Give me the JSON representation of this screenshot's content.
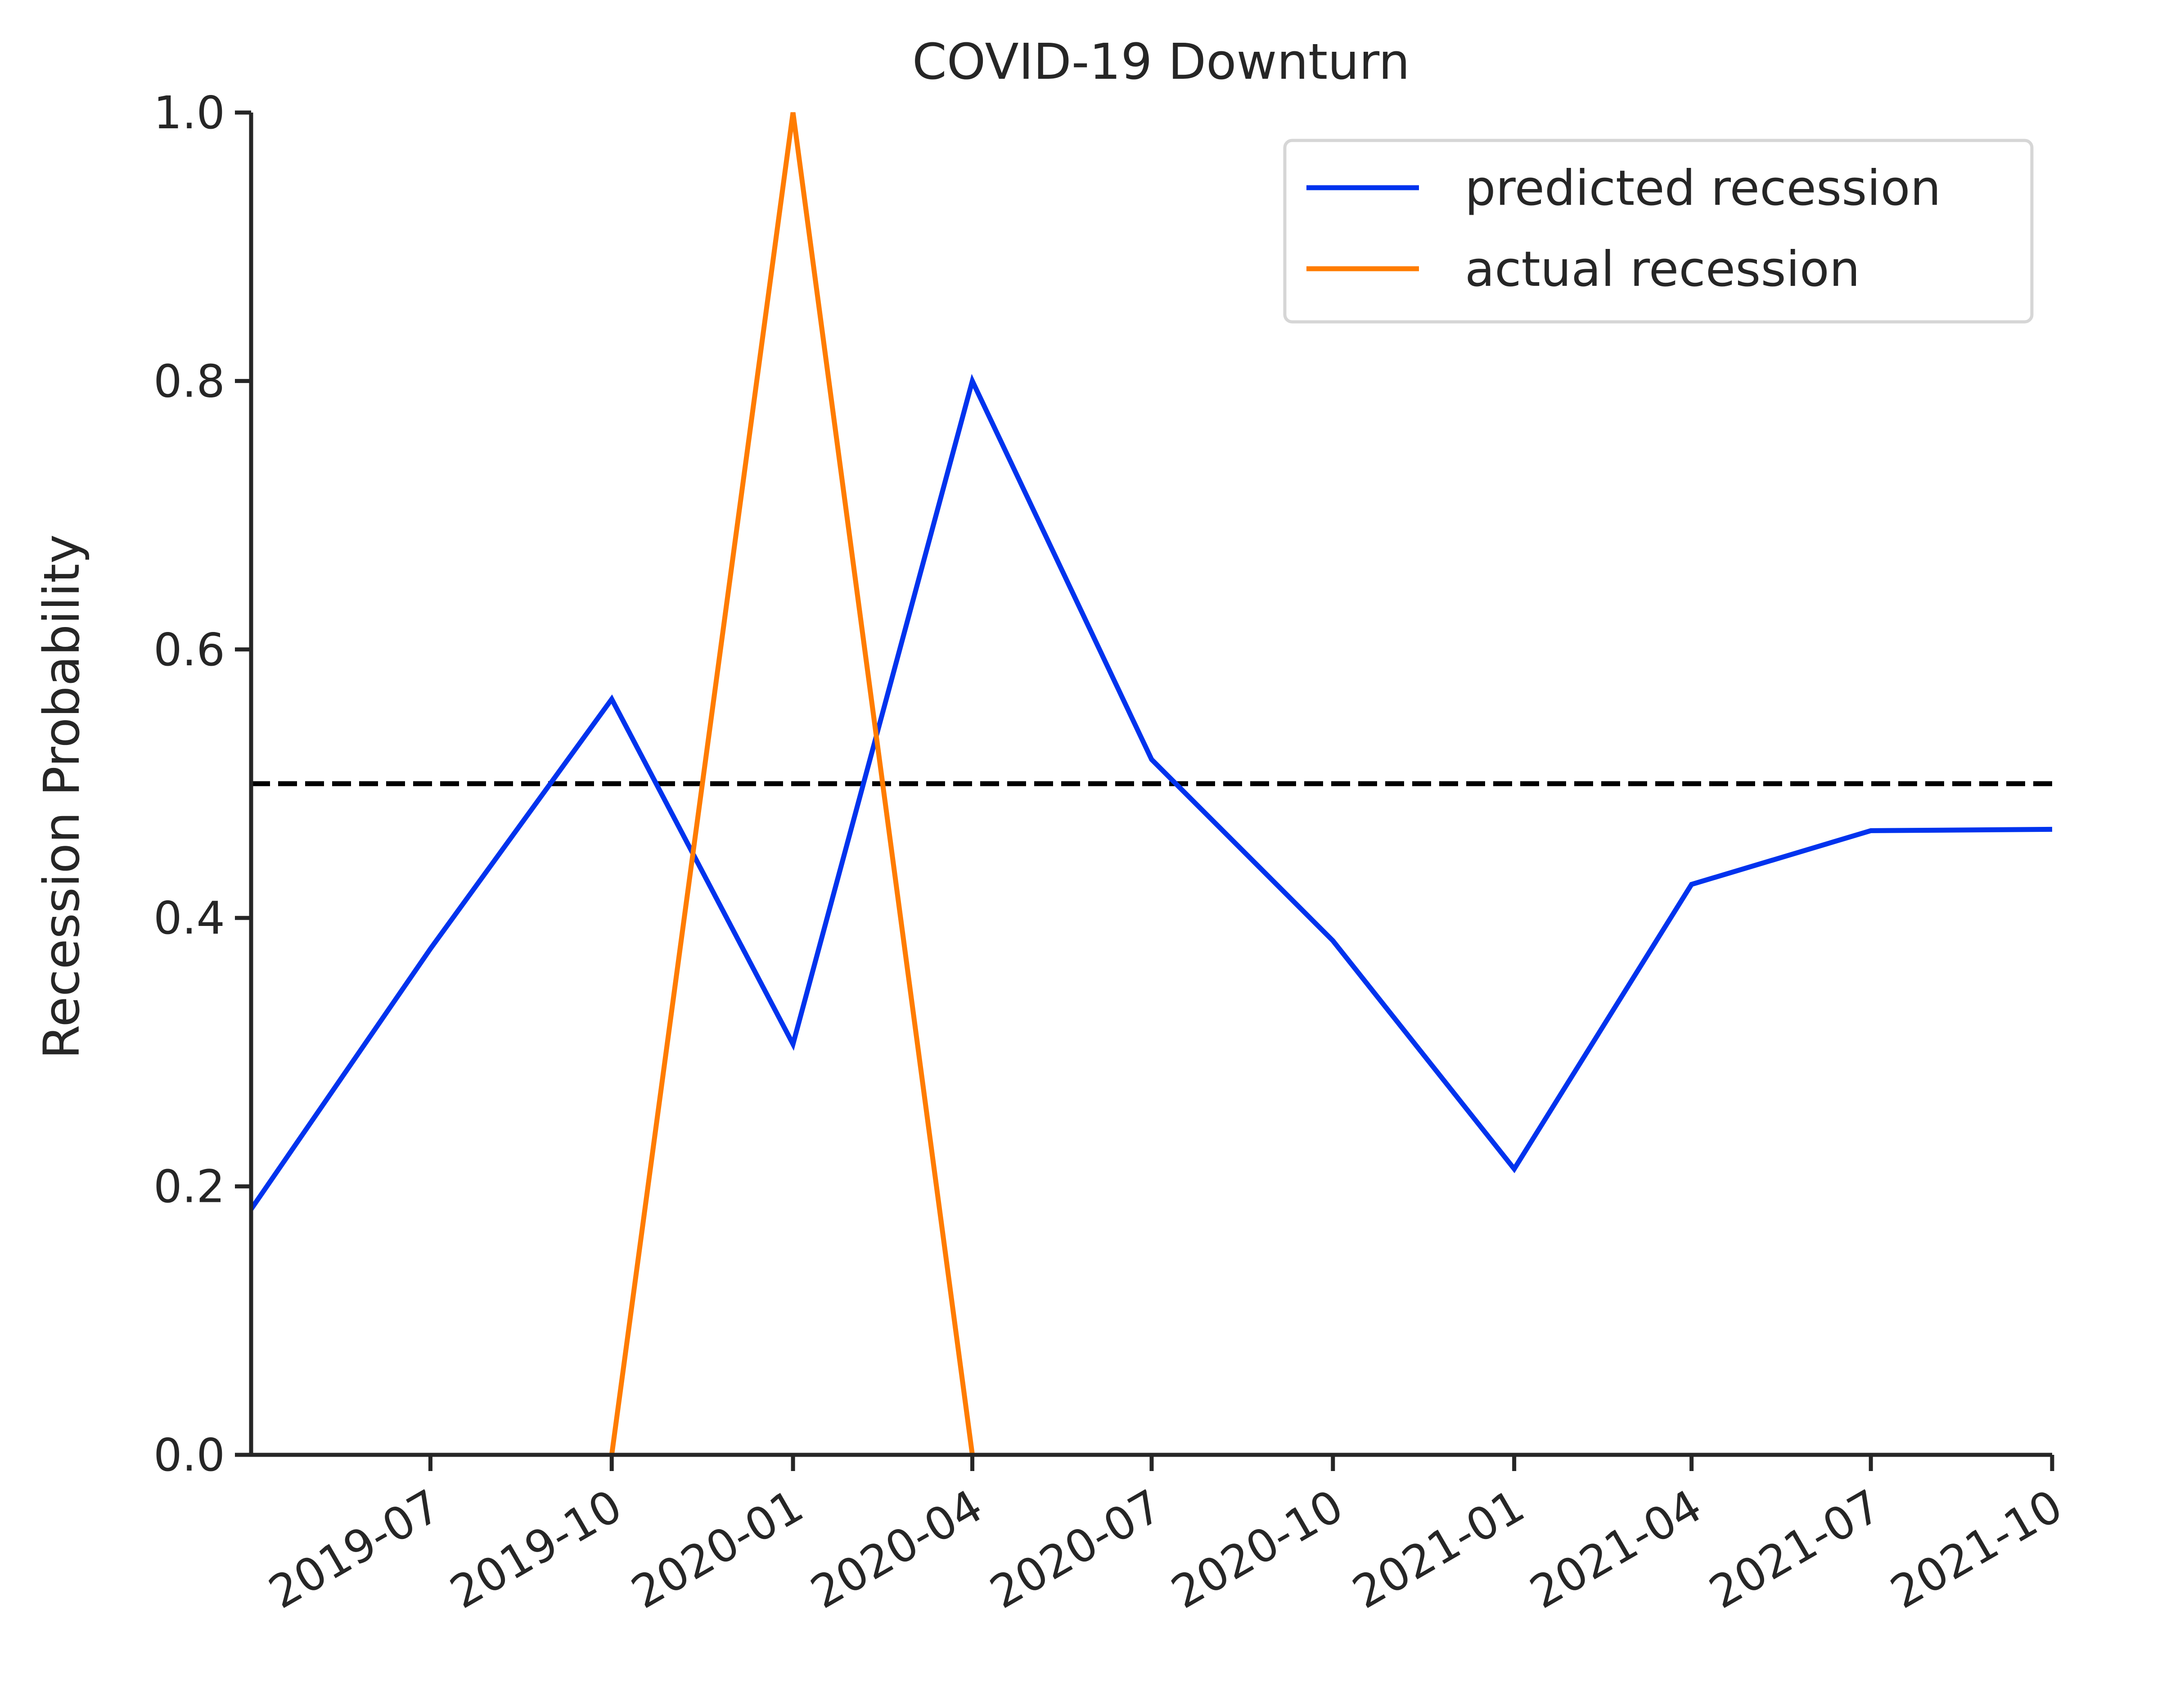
{
  "chart_data": {
    "type": "line",
    "title": "COVID-19 Downturn",
    "xlabel": "",
    "ylabel": "Recession Probability",
    "xlim": [
      "2019-04-01",
      "2021-10-01"
    ],
    "ylim": [
      0,
      1.0
    ],
    "x_ticks": [
      "2019-07",
      "2019-10",
      "2020-01",
      "2020-04",
      "2020-07",
      "2020-10",
      "2021-01",
      "2021-04",
      "2021-07",
      "2021-10"
    ],
    "y_ticks": [
      "0.0",
      "0.2",
      "0.4",
      "0.6",
      "0.8",
      "1.0"
    ],
    "grid": false,
    "legend_position": "top-right",
    "threshold": {
      "y": 0.5,
      "style": "dashed",
      "color": "#000000"
    },
    "x": [
      "2019-04-01",
      "2019-07-01",
      "2019-10-01",
      "2020-01-01",
      "2020-04-01",
      "2020-07-01",
      "2020-10-01",
      "2021-01-01",
      "2021-04-01",
      "2021-07-01",
      "2021-10-01"
    ],
    "series": [
      {
        "name": "predicted recession",
        "color": "#0033ee",
        "x": [
          "2019-04-01",
          "2019-07-01",
          "2019-10-01",
          "2020-01-01",
          "2020-04-01",
          "2020-07-01",
          "2020-10-01",
          "2021-01-01",
          "2021-04-01",
          "2021-07-01",
          "2021-10-01"
        ],
        "values": [
          0.183,
          0.377,
          0.563,
          0.306,
          0.8,
          0.518,
          0.383,
          0.213,
          0.425,
          0.465,
          0.466
        ]
      },
      {
        "name": "actual recession",
        "color": "#ff7c00",
        "x": [
          "2019-10-01",
          "2020-01-01",
          "2020-04-01"
        ],
        "values": [
          0,
          1,
          0
        ]
      }
    ]
  }
}
